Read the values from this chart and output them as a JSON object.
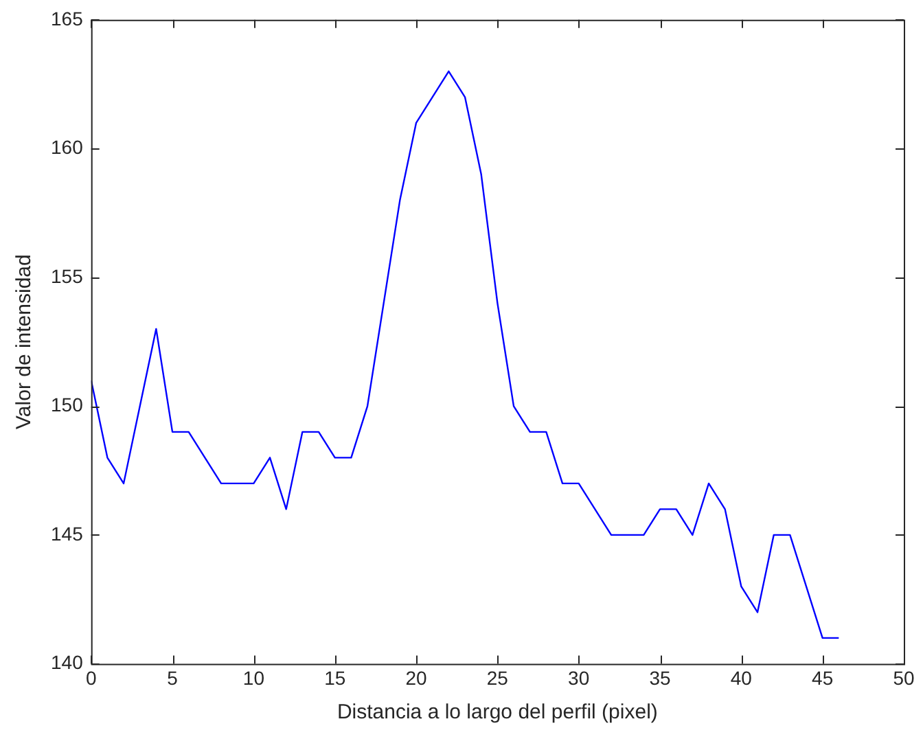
{
  "chart_data": {
    "type": "line",
    "xlabel": "Distancia a lo largo del perfil (pixel)",
    "ylabel": "Valor de intensidad",
    "x": [
      0,
      1,
      2,
      3,
      4,
      5,
      6,
      7,
      8,
      9,
      10,
      11,
      12,
      13,
      14,
      15,
      16,
      17,
      18,
      19,
      20,
      21,
      22,
      23,
      24,
      25,
      26,
      27,
      28,
      29,
      30,
      31,
      32,
      33,
      34,
      35,
      36,
      37,
      38,
      39,
      40,
      41,
      42,
      43,
      44,
      45,
      46
    ],
    "series": [
      {
        "color": "#0000ff",
        "values": [
          151,
          148,
          147,
          150,
          153,
          149,
          149,
          148,
          147,
          147,
          147,
          148,
          146,
          149,
          149,
          148,
          148,
          150,
          154,
          158,
          161,
          162,
          163,
          162,
          159,
          154,
          150,
          149,
          149,
          147,
          147,
          146,
          145,
          145,
          145,
          146,
          146,
          145,
          147,
          146,
          143,
          142,
          145,
          145,
          143,
          141,
          141
        ]
      }
    ],
    "xlim": [
      0,
      50
    ],
    "xticks": [
      0,
      5,
      10,
      15,
      20,
      25,
      30,
      35,
      40,
      45,
      50
    ],
    "ylim": [
      140,
      165
    ],
    "yticks": [
      140,
      145,
      150,
      155,
      160,
      165
    ],
    "grid": false,
    "legend": false,
    "marker": "none",
    "line_style": "solid"
  }
}
